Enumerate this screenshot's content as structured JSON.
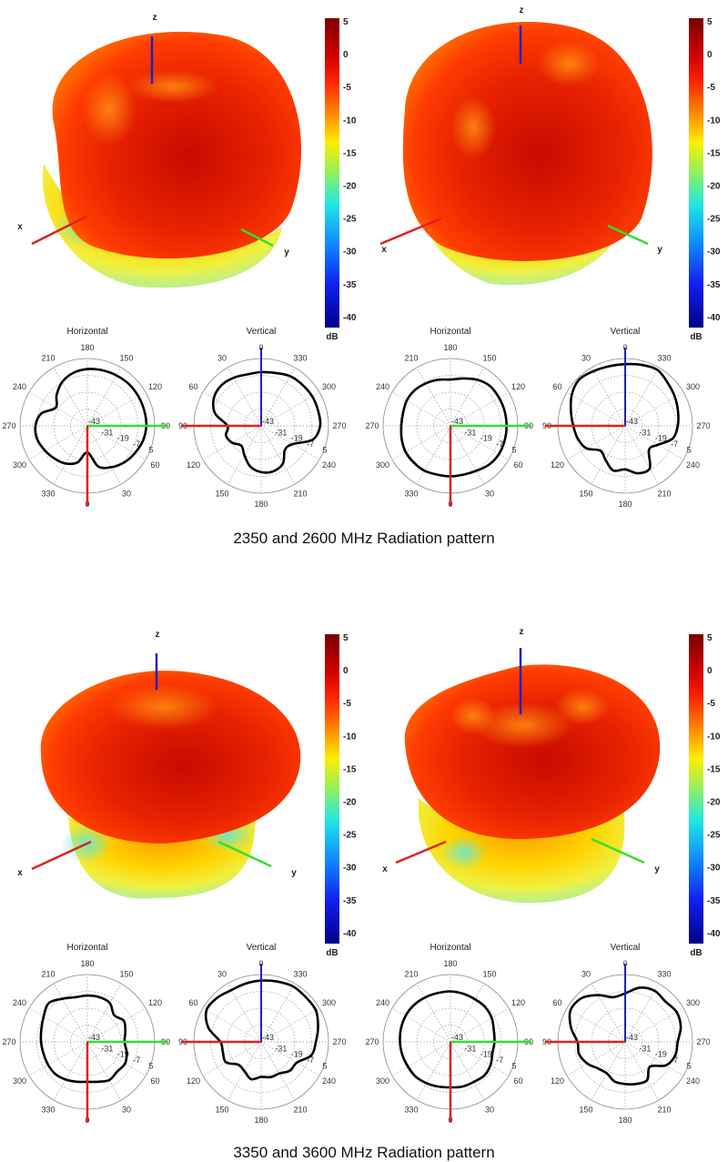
{
  "captions": [
    "2350 and 2600 MHz Radiation pattern",
    "3350 and 3600 MHz Radiation pattern"
  ],
  "axis_labels": {
    "x": "x",
    "y": "y",
    "z": "z"
  },
  "axis_colors": {
    "x": "#e02020",
    "y": "#30e030",
    "z": "#2020c0"
  },
  "colorbar": {
    "unit": "dB",
    "ticks": [
      "5",
      "0",
      "-5",
      "-10",
      "-15",
      "-20",
      "-25",
      "-30",
      "-35",
      "-40"
    ],
    "range": [
      -43,
      5
    ],
    "colormap": "jet"
  },
  "polar_common": {
    "horizontal_title": "Horizontal",
    "vertical_title": "Vertical",
    "radial_ticks": [
      "-43",
      "-31",
      "-19",
      "-7",
      "5"
    ],
    "horizontal_angle_labels": [
      "180",
      "150",
      "120",
      "90",
      "60",
      "30",
      "0",
      "330",
      "300",
      "270",
      "240",
      "210"
    ],
    "vertical_angle_labels": [
      "0",
      "330",
      "300",
      "270",
      "240",
      "210",
      "180",
      "150",
      "120",
      "90",
      "60",
      "30"
    ]
  },
  "chart_data": [
    {
      "type": "polar",
      "frequency_mhz": 2350,
      "cut": "Horizontal",
      "angles_deg_step": 15,
      "rlim": [
        -43,
        5
      ],
      "values_db": [
        -24,
        -13,
        -9,
        -6,
        -4,
        -2,
        -1,
        -1,
        -1,
        -1,
        -1.5,
        -2,
        -2.5,
        -4,
        -7,
        -12,
        -17,
        -9,
        -6,
        -6,
        -8,
        -10,
        -12,
        -16
      ]
    },
    {
      "type": "polar",
      "frequency_mhz": 2350,
      "cut": "Vertical",
      "angles_deg_step": 15,
      "rlim": [
        -43,
        5
      ],
      "values_db": [
        -4.7,
        -5,
        -3.5,
        -2.5,
        -4,
        -9,
        -19,
        -17,
        -19,
        -23,
        -19,
        -13,
        -10,
        -9.5,
        -12,
        -19,
        -17,
        -5,
        -1,
        -1,
        -1,
        -1.5,
        -2,
        -4
      ]
    },
    {
      "type": "polar",
      "frequency_mhz": 2600,
      "cut": "Horizontal",
      "angles_deg_step": 15,
      "rlim": [
        -43,
        5
      ],
      "values_db": [
        -7,
        -7,
        -6,
        -4,
        -3,
        -3,
        -3,
        -3,
        -3,
        -3,
        -5,
        -8,
        -10,
        -9,
        -8,
        -7,
        -7,
        -8,
        -8,
        -7,
        -6,
        -6,
        -6,
        -7
      ]
    },
    {
      "type": "polar",
      "frequency_mhz": 2600,
      "cut": "Vertical",
      "angles_deg_step": 15,
      "rlim": [
        -43,
        5
      ],
      "values_db": [
        1,
        1,
        2,
        3.5,
        1,
        -3,
        -6,
        -8,
        -11,
        -18,
        -15,
        -10,
        -12,
        -8,
        -8,
        -19,
        -16,
        -8,
        -5.5,
        -4,
        -2,
        0,
        3,
        2
      ]
    },
    {
      "type": "polar",
      "frequency_mhz": 3350,
      "cut": "Horizontal",
      "angles_deg_step": 15,
      "rlim": [
        -43,
        5
      ],
      "values_db": [
        -14.5,
        -13.6,
        -11.6,
        -13,
        -12,
        -14,
        -16.5,
        -15,
        -13,
        -16,
        -11,
        -10,
        -10,
        -10,
        -7.5,
        -4,
        -7,
        -9,
        -10,
        -10.6,
        -10.6,
        -10.6,
        -12,
        -13.6
      ]
    },
    {
      "type": "polar",
      "frequency_mhz": 3350,
      "cut": "Vertical",
      "angles_deg_step": 15,
      "rlim": [
        -43,
        5
      ],
      "values_db": [
        0.7,
        0,
        -0.4,
        1.4,
        2,
        -4,
        -14,
        -14.7,
        -14,
        -20,
        -19,
        -15.5,
        -18,
        -17,
        -17,
        -14,
        -13.6,
        -6,
        -4,
        -1,
        2,
        2,
        2.6,
        1.5
      ]
    },
    {
      "type": "polar",
      "frequency_mhz": 3600,
      "cut": "Horizontal",
      "angles_deg_step": 15,
      "rlim": [
        -43,
        5
      ],
      "values_db": [
        -10.6,
        -10,
        -10,
        -9,
        -10,
        -12,
        -11.6,
        -11,
        -9,
        -8,
        -8,
        -7.5,
        -7,
        -7,
        -6.5,
        -6,
        -6,
        -6.5,
        -7,
        -7.5,
        -8,
        -8,
        -9,
        -10
      ]
    },
    {
      "type": "polar",
      "frequency_mhz": 3600,
      "cut": "Vertical",
      "angles_deg_step": 15,
      "rlim": [
        -43,
        5
      ],
      "values_db": [
        -8.4,
        -10,
        -4.5,
        1,
        2,
        -3,
        -9,
        -9,
        -12,
        -16,
        -17,
        -13.8,
        -13,
        -12,
        -11.6,
        -18,
        -9.5,
        -6,
        -5.6,
        -2,
        -0.6,
        -2.4,
        -1,
        -3
      ]
    }
  ]
}
